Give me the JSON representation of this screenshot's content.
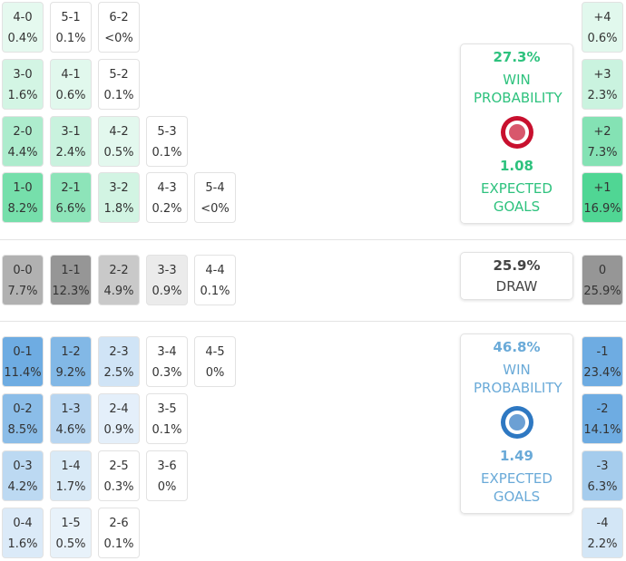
{
  "home": {
    "rows": [
      [
        {
          "score": "4-0",
          "pct": "0.4%"
        },
        {
          "score": "5-1",
          "pct": "0.1%"
        },
        {
          "score": "6-2",
          "pct": "<0%"
        }
      ],
      [
        {
          "score": "3-0",
          "pct": "1.6%"
        },
        {
          "score": "4-1",
          "pct": "0.6%"
        },
        {
          "score": "5-2",
          "pct": "0.1%"
        }
      ],
      [
        {
          "score": "2-0",
          "pct": "4.4%"
        },
        {
          "score": "3-1",
          "pct": "2.4%"
        },
        {
          "score": "4-2",
          "pct": "0.5%"
        },
        {
          "score": "5-3",
          "pct": "0.1%"
        }
      ],
      [
        {
          "score": "1-0",
          "pct": "8.2%"
        },
        {
          "score": "2-1",
          "pct": "6.6%"
        },
        {
          "score": "3-2",
          "pct": "1.8%"
        },
        {
          "score": "4-3",
          "pct": "0.2%"
        },
        {
          "score": "5-4",
          "pct": "<0%"
        }
      ]
    ],
    "margins": [
      {
        "score": "+4",
        "pct": "0.6%"
      },
      {
        "score": "+3",
        "pct": "2.3%"
      },
      {
        "score": "+2",
        "pct": "7.3%"
      },
      {
        "score": "+1",
        "pct": "16.9%"
      }
    ],
    "panel": {
      "win": "27.3%",
      "win_label": "WIN PROBABILITY",
      "xg": "1.08",
      "xg_label": "EXPECTED GOALS"
    }
  },
  "draw": {
    "rows": [
      [
        {
          "score": "0-0",
          "pct": "7.7%"
        },
        {
          "score": "1-1",
          "pct": "12.3%"
        },
        {
          "score": "2-2",
          "pct": "4.9%"
        },
        {
          "score": "3-3",
          "pct": "0.9%"
        },
        {
          "score": "4-4",
          "pct": "0.1%"
        }
      ]
    ],
    "margins": [
      {
        "score": "0",
        "pct": "25.9%"
      }
    ],
    "panel": {
      "win": "25.9%",
      "win_label": "DRAW"
    }
  },
  "away": {
    "rows": [
      [
        {
          "score": "0-1",
          "pct": "11.4%"
        },
        {
          "score": "1-2",
          "pct": "9.2%"
        },
        {
          "score": "2-3",
          "pct": "2.5%"
        },
        {
          "score": "3-4",
          "pct": "0.3%"
        },
        {
          "score": "4-5",
          "pct": "0%"
        }
      ],
      [
        {
          "score": "0-2",
          "pct": "8.5%"
        },
        {
          "score": "1-3",
          "pct": "4.6%"
        },
        {
          "score": "2-4",
          "pct": "0.9%"
        },
        {
          "score": "3-5",
          "pct": "0.1%"
        }
      ],
      [
        {
          "score": "0-3",
          "pct": "4.2%"
        },
        {
          "score": "1-4",
          "pct": "1.7%"
        },
        {
          "score": "2-5",
          "pct": "0.3%"
        },
        {
          "score": "3-6",
          "pct": "0%"
        }
      ],
      [
        {
          "score": "0-4",
          "pct": "1.6%"
        },
        {
          "score": "1-5",
          "pct": "0.5%"
        },
        {
          "score": "2-6",
          "pct": "0.1%"
        }
      ]
    ],
    "margins": [
      {
        "score": "-1",
        "pct": "23.4%"
      },
      {
        "score": "-2",
        "pct": "14.1%"
      },
      {
        "score": "-3",
        "pct": "6.3%"
      },
      {
        "score": "-4",
        "pct": "2.2%"
      }
    ],
    "panel": {
      "win": "46.8%",
      "win_label": "WIN PROBABILITY",
      "xg": "1.49",
      "xg_label": "EXPECTED GOALS"
    }
  }
}
